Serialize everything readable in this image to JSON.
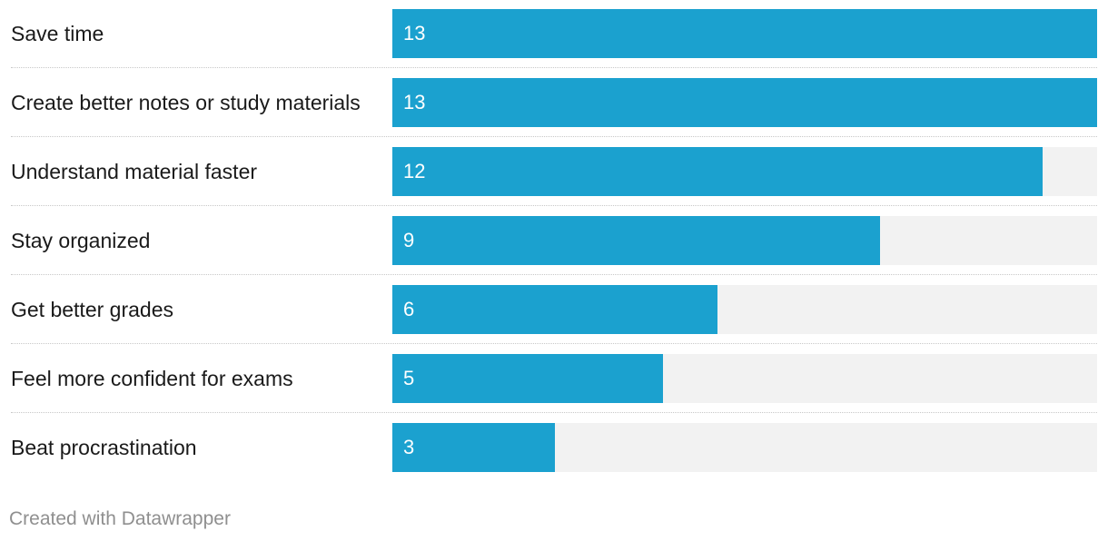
{
  "chart_data": {
    "type": "bar",
    "orientation": "horizontal",
    "categories": [
      "Save time",
      "Create better notes or study materials",
      "Understand material faster",
      "Stay organized",
      "Get better grades",
      "Feel more confident for exams",
      "Beat procrastination"
    ],
    "values": [
      13,
      13,
      12,
      9,
      6,
      5,
      3
    ],
    "xlim": [
      0,
      13
    ],
    "title": "",
    "xlabel": "",
    "ylabel": "",
    "grid": false,
    "bar_color": "#1ba1cf",
    "track_color": "#f2f2f2"
  },
  "footer": {
    "credit": "Created with Datawrapper"
  }
}
